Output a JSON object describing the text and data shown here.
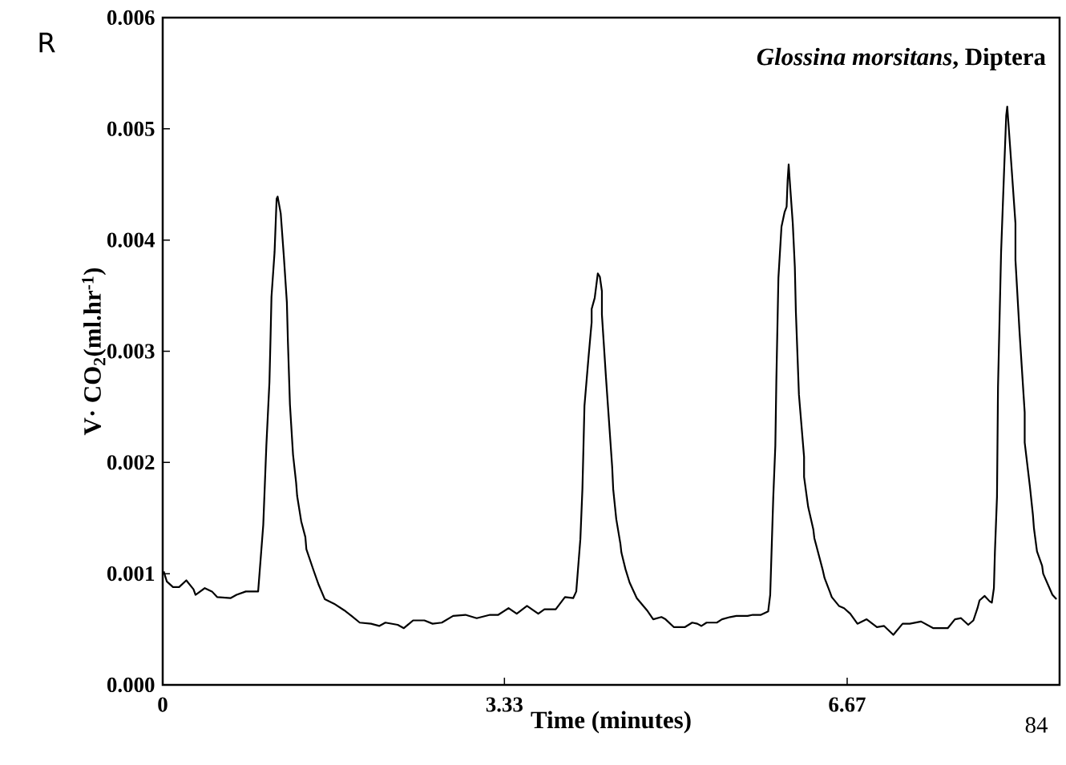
{
  "chart_data": {
    "type": "line",
    "title": "*Glossina morsitans*, Diptera",
    "xlabel": "Time (minutes)",
    "ylabel": "V· CO$_{2}$(ml.hr$^{-1}$)",
    "annotations": [
      "R",
      "84"
    ],
    "color": "#000000",
    "x": [
      0.01,
      0.04,
      0.1,
      0.16,
      0.23,
      0.3,
      0.32,
      0.41,
      0.48,
      0.53,
      0.66,
      0.72,
      0.81,
      0.93,
      0.98,
      1.01,
      1.04,
      1.05,
      1.06,
      1.09,
      1.11,
      1.12,
      1.15,
      1.18,
      1.21,
      1.22,
      1.24,
      1.27,
      1.3,
      1.31,
      1.35,
      1.39,
      1.4,
      1.47,
      1.52,
      1.58,
      1.67,
      1.77,
      1.84,
      1.92,
      2.03,
      2.11,
      2.17,
      2.29,
      2.35,
      2.44,
      2.55,
      2.63,
      2.72,
      2.83,
      2.95,
      3.06,
      3.19,
      3.27,
      3.37,
      3.45,
      3.55,
      3.66,
      3.72,
      3.83,
      3.92,
      4.0,
      4.03,
      4.07,
      4.09,
      4.1,
      4.11,
      4.15,
      4.17,
      4.18,
      4.18,
      4.21,
      4.24,
      4.26,
      4.28,
      4.28,
      4.32,
      4.38,
      4.39,
      4.42,
      4.46,
      4.47,
      4.51,
      4.55,
      4.62,
      4.72,
      4.78,
      4.86,
      4.9,
      4.98,
      5.09,
      5.16,
      5.21,
      5.25,
      5.3,
      5.4,
      5.45,
      5.53,
      5.59,
      5.7,
      5.75,
      5.83,
      5.9,
      5.92,
      5.95,
      5.97,
      5.98,
      6.0,
      6.03,
      6.06,
      6.08,
      6.09,
      6.1,
      6.11,
      6.14,
      6.16,
      6.17,
      6.2,
      6.25,
      6.25,
      6.29,
      6.34,
      6.35,
      6.43,
      6.45,
      6.5,
      6.52,
      6.59,
      6.64,
      6.7,
      6.77,
      6.86,
      6.96,
      7.03,
      7.12,
      7.21,
      7.28,
      7.39,
      7.51,
      7.58,
      7.65,
      7.72,
      7.78,
      7.85,
      7.9,
      7.94,
      7.96,
      8.01,
      8.06,
      8.08,
      8.1,
      8.11,
      8.13,
      8.14,
      8.17,
      8.2,
      8.22,
      8.23,
      8.26,
      8.31,
      8.31,
      8.35,
      8.4,
      8.4,
      8.45,
      8.48,
      8.49,
      8.52,
      8.57,
      8.58,
      8.67,
      8.71
    ],
    "values": [
      0.00102,
      0.00093,
      0.00088,
      0.00088,
      0.00094,
      0.00086,
      0.00081,
      0.00087,
      0.00084,
      0.00079,
      0.00078,
      0.00081,
      0.00084,
      0.00084,
      0.00144,
      0.00215,
      0.00272,
      0.00309,
      0.00349,
      0.00389,
      0.00437,
      0.00439,
      0.00424,
      0.00386,
      0.00344,
      0.00309,
      0.00252,
      0.00207,
      0.00182,
      0.0017,
      0.00147,
      0.00133,
      0.00122,
      0.00103,
      0.0009,
      0.00077,
      0.00073,
      0.00067,
      0.00062,
      0.00056,
      0.00055,
      0.00053,
      0.00056,
      0.00054,
      0.00051,
      0.00058,
      0.00058,
      0.00055,
      0.00056,
      0.00062,
      0.00063,
      0.0006,
      0.00063,
      0.00063,
      0.00069,
      0.00064,
      0.00071,
      0.00064,
      0.00068,
      0.00068,
      0.00079,
      0.00078,
      0.00084,
      0.00131,
      0.00176,
      0.00213,
      0.00251,
      0.00295,
      0.00316,
      0.00326,
      0.00338,
      0.00348,
      0.0037,
      0.00367,
      0.00354,
      0.00333,
      0.00276,
      0.00196,
      0.00176,
      0.00149,
      0.00127,
      0.00119,
      0.00104,
      0.00092,
      0.00078,
      0.00067,
      0.00059,
      0.00061,
      0.00059,
      0.00052,
      0.00052,
      0.00056,
      0.00055,
      0.00053,
      0.00056,
      0.00056,
      0.00059,
      0.00061,
      0.00062,
      0.00062,
      0.00063,
      0.00063,
      0.00066,
      0.00081,
      0.00169,
      0.00215,
      0.00274,
      0.00366,
      0.00412,
      0.00425,
      0.0043,
      0.00454,
      0.00468,
      0.00454,
      0.00415,
      0.00376,
      0.00336,
      0.00261,
      0.00205,
      0.00187,
      0.0016,
      0.0014,
      0.00132,
      0.00104,
      0.00096,
      0.00084,
      0.00079,
      0.00071,
      0.00069,
      0.00064,
      0.00055,
      0.00059,
      0.00052,
      0.00053,
      0.00045,
      0.00055,
      0.00055,
      0.00057,
      0.00051,
      0.00051,
      0.00051,
      0.00059,
      0.0006,
      0.00054,
      0.00058,
      0.00069,
      0.00076,
      0.0008,
      0.00075,
      0.00074,
      0.00087,
      0.0012,
      0.00169,
      0.00268,
      0.00389,
      0.00464,
      0.00512,
      0.0052,
      0.00481,
      0.00415,
      0.00382,
      0.00317,
      0.00245,
      0.00218,
      0.00179,
      0.00153,
      0.00141,
      0.0012,
      0.00107,
      0.001,
      0.00081,
      0.00077
    ],
    "xlim": [
      0,
      8.74
    ],
    "xticks": [
      0,
      3.33,
      6.67
    ],
    "ylim": [
      0,
      0.006
    ],
    "yticks": [
      {
        "value": 0,
        "label": "0.000"
      },
      {
        "value": 0.001,
        "label": "0.001"
      },
      {
        "value": 0.002,
        "label": "0.002"
      },
      {
        "value": 0.003,
        "label": "0.003"
      },
      {
        "value": 0.004,
        "label": "0.004"
      },
      {
        "value": 0.005,
        "label": "0.005"
      },
      {
        "value": 0.006,
        "label": "0.006"
      }
    ]
  }
}
